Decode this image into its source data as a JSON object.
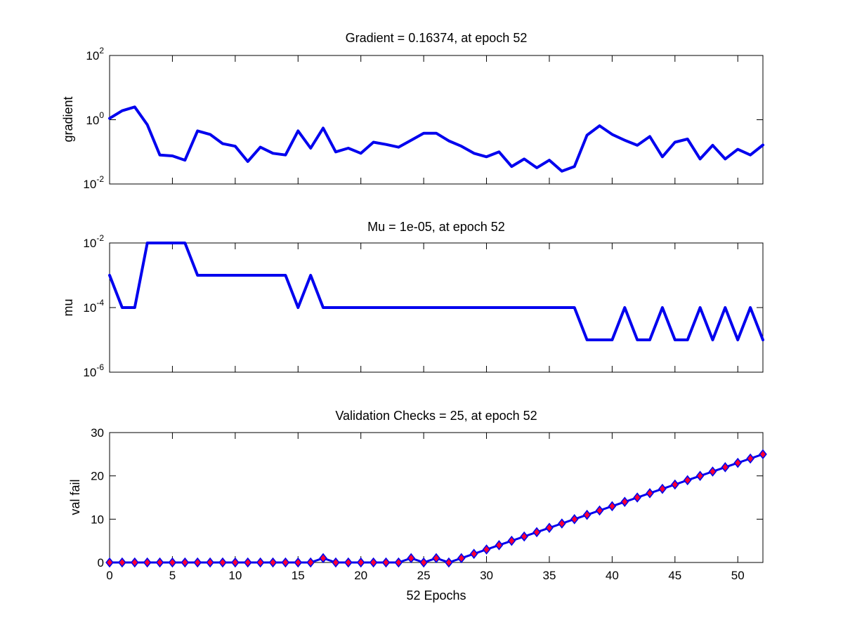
{
  "chart_data": [
    {
      "type": "line",
      "title": "Gradient = 0.16374, at epoch 52",
      "ylabel": "gradient",
      "xlabel": "",
      "yscale": "log",
      "xlim": [
        0,
        52
      ],
      "ylim": [
        0.01,
        100
      ],
      "yticks": [
        {
          "base": "10",
          "exp": "2"
        },
        {
          "base": "10",
          "exp": "0"
        },
        {
          "base": "10",
          "exp": "-2"
        }
      ],
      "line_color": "#0000ee",
      "grid": false,
      "x": [
        0,
        1,
        2,
        3,
        4,
        5,
        6,
        7,
        8,
        9,
        10,
        11,
        12,
        13,
        14,
        15,
        16,
        17,
        18,
        19,
        20,
        21,
        22,
        23,
        24,
        25,
        26,
        27,
        28,
        29,
        30,
        31,
        32,
        33,
        34,
        35,
        36,
        37,
        38,
        39,
        40,
        41,
        42,
        43,
        44,
        45,
        46,
        47,
        48,
        49,
        50,
        51,
        52
      ],
      "values": [
        1.1,
        1.9,
        2.5,
        0.7,
        0.08,
        0.075,
        0.055,
        0.45,
        0.35,
        0.18,
        0.15,
        0.05,
        0.14,
        0.09,
        0.08,
        0.45,
        0.13,
        0.55,
        0.1,
        0.13,
        0.09,
        0.2,
        0.17,
        0.14,
        0.23,
        0.38,
        0.38,
        0.22,
        0.15,
        0.09,
        0.07,
        0.1,
        0.035,
        0.06,
        0.032,
        0.055,
        0.025,
        0.035,
        0.33,
        0.65,
        0.35,
        0.23,
        0.16,
        0.3,
        0.07,
        0.2,
        0.25,
        0.06,
        0.16,
        0.06,
        0.12,
        0.08,
        0.16374
      ]
    },
    {
      "type": "line",
      "title": "Mu = 1e-05, at epoch 52",
      "ylabel": "mu",
      "xlabel": "",
      "yscale": "log",
      "xlim": [
        0,
        52
      ],
      "ylim": [
        1e-06,
        0.01
      ],
      "yticks": [
        {
          "base": "10",
          "exp": "-2"
        },
        {
          "base": "10",
          "exp": "-4"
        },
        {
          "base": "10",
          "exp": "-6"
        }
      ],
      "line_color": "#0000ee",
      "grid": false,
      "x": [
        0,
        1,
        2,
        3,
        4,
        5,
        6,
        7,
        8,
        9,
        10,
        11,
        12,
        13,
        14,
        15,
        16,
        17,
        18,
        19,
        20,
        21,
        22,
        23,
        24,
        25,
        26,
        27,
        28,
        29,
        30,
        31,
        32,
        33,
        34,
        35,
        36,
        37,
        38,
        39,
        40,
        41,
        42,
        43,
        44,
        45,
        46,
        47,
        48,
        49,
        50,
        51,
        52
      ],
      "values": [
        0.001,
        0.0001,
        0.0001,
        0.01,
        0.01,
        0.01,
        0.01,
        0.001,
        0.001,
        0.001,
        0.001,
        0.001,
        0.001,
        0.001,
        0.001,
        0.0001,
        0.001,
        0.0001,
        0.0001,
        0.0001,
        0.0001,
        0.0001,
        0.0001,
        0.0001,
        0.0001,
        0.0001,
        0.0001,
        0.0001,
        0.0001,
        0.0001,
        0.0001,
        0.0001,
        0.0001,
        0.0001,
        0.0001,
        0.0001,
        0.0001,
        0.0001,
        1e-05,
        1e-05,
        1e-05,
        0.0001,
        1e-05,
        1e-05,
        0.0001,
        1e-05,
        1e-05,
        0.0001,
        1e-05,
        0.0001,
        1e-05,
        0.0001,
        1e-05
      ]
    },
    {
      "type": "scatter",
      "title": "Validation Checks = 25, at epoch 52",
      "ylabel": "val fail",
      "xlabel": "52 Epochs",
      "yscale": "linear",
      "xlim": [
        0,
        52
      ],
      "ylim": [
        0,
        30
      ],
      "yticks": [
        "0",
        "10",
        "20",
        "30"
      ],
      "xticks": [
        "0",
        "5",
        "10",
        "15",
        "20",
        "25",
        "30",
        "35",
        "40",
        "45",
        "50"
      ],
      "line_color": "#0000ee",
      "marker": "diamond",
      "marker_fill": "#ff0033",
      "marker_edge": "#0000ee",
      "grid": false,
      "x": [
        0,
        1,
        2,
        3,
        4,
        5,
        6,
        7,
        8,
        9,
        10,
        11,
        12,
        13,
        14,
        15,
        16,
        17,
        18,
        19,
        20,
        21,
        22,
        23,
        24,
        25,
        26,
        27,
        28,
        29,
        30,
        31,
        32,
        33,
        34,
        35,
        36,
        37,
        38,
        39,
        40,
        41,
        42,
        43,
        44,
        45,
        46,
        47,
        48,
        49,
        50,
        51,
        52
      ],
      "values": [
        0,
        0,
        0,
        0,
        0,
        0,
        0,
        0,
        0,
        0,
        0,
        0,
        0,
        0,
        0,
        0,
        0,
        1,
        0,
        0,
        0,
        0,
        0,
        0,
        1,
        0,
        1,
        0,
        1,
        2,
        3,
        4,
        5,
        6,
        7,
        8,
        9,
        10,
        11,
        12,
        13,
        14,
        15,
        16,
        17,
        18,
        19,
        20,
        21,
        22,
        23,
        24,
        25
      ]
    }
  ]
}
